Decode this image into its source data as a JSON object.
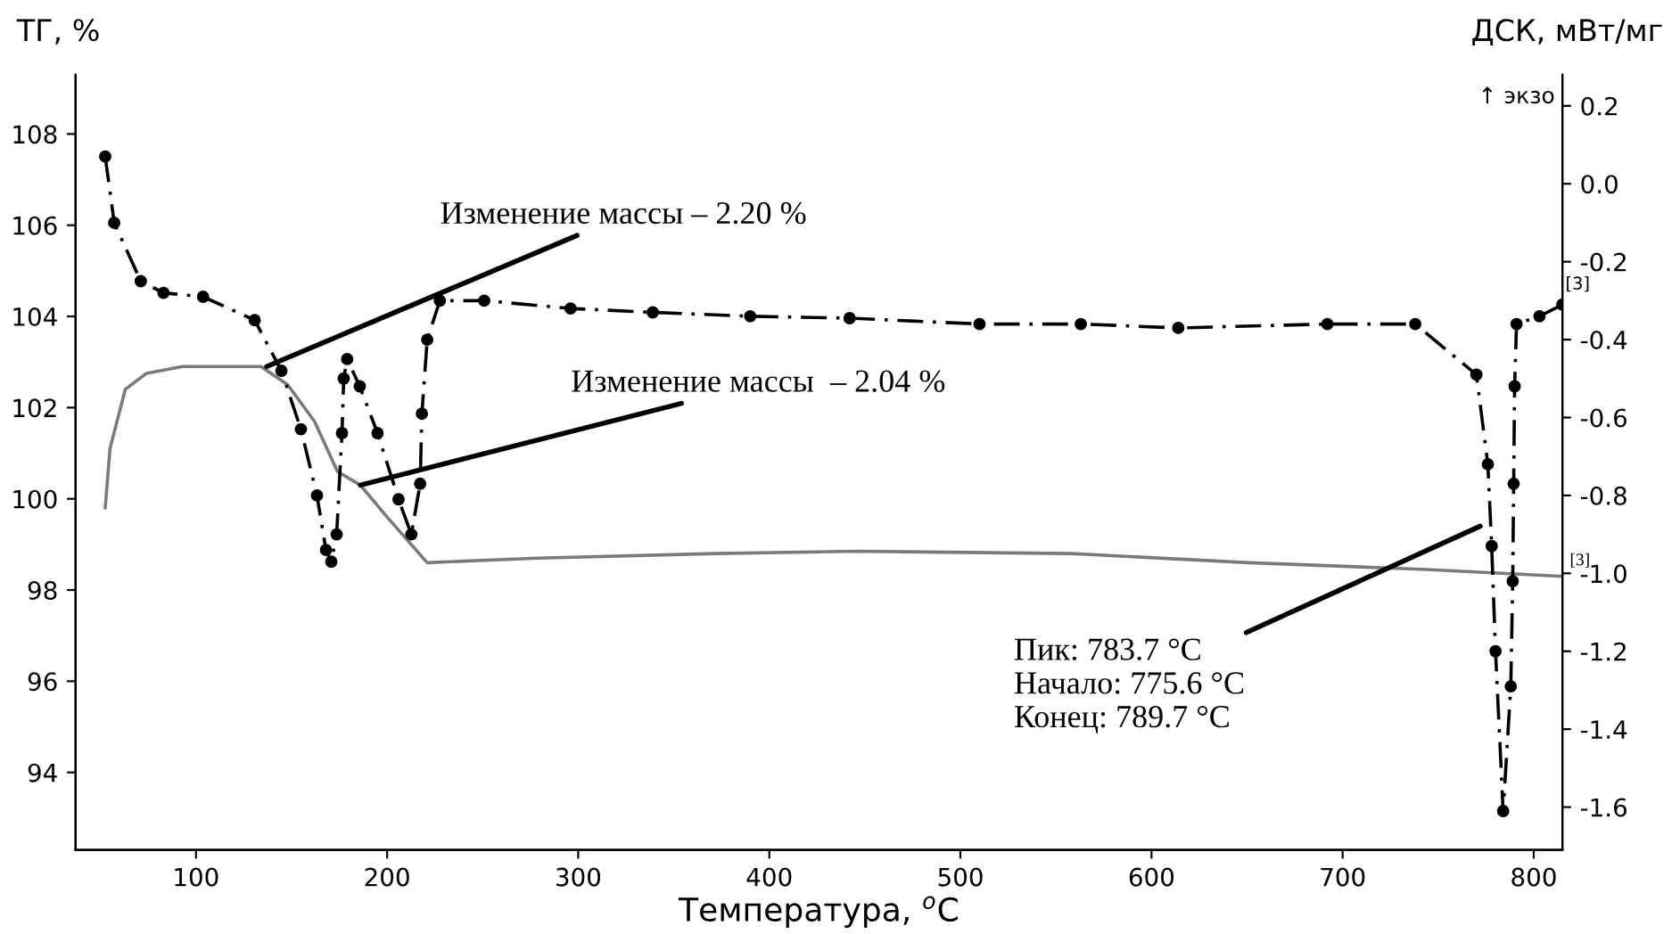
{
  "chart_data": {
    "type": "line",
    "xlabel": "Температура, $^{o}$C",
    "ylabel": "ТГ, %",
    "y2label": "ДСК, мВт/мг",
    "xlim": [
      37,
      815
    ],
    "xticks": [
      100,
      200,
      300,
      400,
      500,
      600,
      700,
      800
    ],
    "ylim": [
      92.3,
      109.3
    ],
    "yticks": [
      94,
      96,
      98,
      100,
      102,
      104,
      106,
      108
    ],
    "y2lim": [
      -1.71,
      0.28
    ],
    "y2ticks": [
      {
        "value": 0.2,
        "label": "0.2"
      },
      {
        "value": 0,
        "label": "0.0"
      },
      {
        "value": -0.2,
        "label": "-0.2"
      },
      {
        "value": -0.4,
        "label": "-0.4"
      },
      {
        "value": -0.6,
        "label": "-0.6"
      },
      {
        "value": -0.8,
        "label": "-0.8"
      },
      {
        "value": -1.0,
        "label": "-1.0"
      },
      {
        "value": -1.2,
        "label": "-1.2"
      },
      {
        "value": -1.4,
        "label": "-1.4"
      },
      {
        "value": -1.6,
        "label": "-1.6"
      }
    ],
    "grid": false,
    "legend": false,
    "series": [
      {
        "color": "#7a7a7a",
        "line_style": "solid",
        "marker": "none",
        "x": [
          52.5,
          55,
          63,
          74,
          93,
          134,
          148,
          162,
          174,
          186,
          200,
          221,
          279,
          372,
          446,
          558,
          651,
          744,
          815
        ],
        "values": [
          99.8,
          101.1,
          102.4,
          102.75,
          102.9,
          102.9,
          102.5,
          101.7,
          100.6,
          100.3,
          99.6,
          98.6,
          98.7,
          98.8,
          98.85,
          98.8,
          98.6,
          98.45,
          98.3
        ]
      },
      {
        "color": "#000000",
        "axis": "y2",
        "line_style": "dashed",
        "marker": "circle",
        "x": [
          52.5,
          57.2,
          71.1,
          83,
          103.7,
          130.7,
          144.7,
          154.9,
          163.3,
          168,
          170.8,
          173.6,
          176.4,
          177.3,
          179.1,
          185.7,
          195,
          206,
          212.7,
          217.3,
          218.2,
          221,
          227.6,
          250.8,
          296,
          339,
          390,
          442,
          510,
          563,
          614,
          692,
          738,
          770,
          776,
          778,
          780,
          784,
          788,
          789,
          789.5,
          790,
          791,
          803,
          815
        ],
        "values": [
          0.07,
          -0.1,
          -0.25,
          -0.28,
          -0.29,
          -0.35,
          -0.48,
          -0.63,
          -0.8,
          -0.94,
          -0.97,
          -0.9,
          -0.64,
          -0.5,
          -0.45,
          -0.52,
          -0.64,
          -0.81,
          -0.9,
          -0.77,
          -0.59,
          -0.4,
          -0.3,
          -0.3,
          -0.32,
          -0.33,
          -0.34,
          -0.345,
          -0.36,
          -0.36,
          -0.37,
          -0.36,
          -0.36,
          -0.49,
          -0.72,
          -0.93,
          -1.2,
          -1.61,
          -1.29,
          -1.02,
          -0.77,
          -0.52,
          -0.36,
          -0.34,
          -0.31
        ]
      }
    ],
    "annotations": [
      {
        "text": "Изменение массы – 2.20 %",
        "x": 137,
        "y": 102.9
      },
      {
        "text": "Изменение массы  – 2.04 %",
        "x": 186,
        "y": 100.3
      },
      {
        "text": "Пик: 783.7 °C\nНачало: 775.6 °C\nКонец: 789.7 °C",
        "x": 772,
        "y": 99.4
      },
      {
        "text": "[3]",
        "x": 815,
        "y": 98.3
      },
      "[3]",
      "↑ экзо"
    ]
  }
}
